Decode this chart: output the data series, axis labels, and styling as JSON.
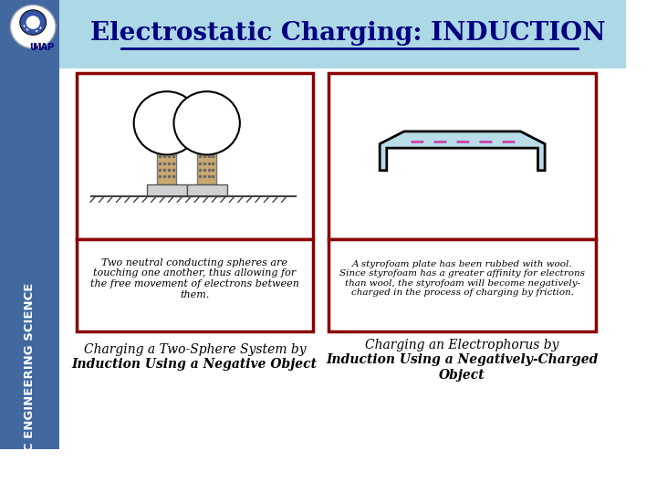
{
  "title": "Electrostatic Charging: INDUCTION",
  "title_bg": "#add8e6",
  "title_color": "#000080",
  "main_bg": "#ffffff",
  "sidebar_bg": "#4169a0",
  "sidebar_text": "BASIC ENGINEERING SCIENCE",
  "sidebar_text_color": "#ffffff",
  "box_border_color": "#8b0000",
  "box_bg": "#ffffff",
  "desc1": "Two neutral conducting spheres are\ntouching one another, thus allowing for\nthe free movement of electrons between\nthem.",
  "desc2": "A styrofoam plate has been rubbed with wool.\nSince styrofoam has a greater affinity for electrons\nthan wool, the styrofoam will become negatively-\ncharged in the process of charging by friction.",
  "caption1_line1": "Charging a Two-Sphere System by",
  "caption1_line2": "Induction Using a Negative Object",
  "caption2_line1": "Charging an Electrophorus by",
  "caption2_line2": "Induction Using a Negatively-Charged",
  "caption2_line3": "Object",
  "sphere_color": "#ffffff",
  "sphere_edge": "#000000",
  "stand_color": "#c8a870",
  "stand_edge": "#777777",
  "base_color": "#d0d0d0",
  "base_edge": "#555555",
  "plate_fill": "#b8dde8",
  "plate_edge": "#000000",
  "plate_dash_color": "#cc44aa"
}
